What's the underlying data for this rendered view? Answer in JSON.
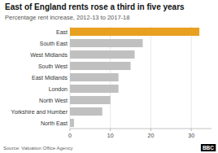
{
  "chart_data": {
    "type": "bar",
    "orientation": "horizontal",
    "title": "East of England rents rose a third in five years",
    "subtitle": "Percentage rent increase, 2012-13 to 2017-18",
    "annotations": [
      "Source: Valuation Office Agency",
      "BBC"
    ],
    "categories": [
      "East",
      "South East",
      "West Midlands",
      "South West",
      "East Midlands",
      "London",
      "North West",
      "Yorkshire and Humber",
      "North East"
    ],
    "values": [
      32,
      18,
      16,
      15,
      12,
      12,
      10,
      8,
      1
    ],
    "colors": [
      "#E8A020",
      "#C0C0C0",
      "#C0C0C0",
      "#C0C0C0",
      "#C0C0C0",
      "#C0C0C0",
      "#C0C0C0",
      "#C0C0C0",
      "#C0C0C0"
    ],
    "xlim": [
      0,
      35
    ],
    "xticks": [
      0,
      10,
      20,
      30
    ],
    "grid": true
  }
}
